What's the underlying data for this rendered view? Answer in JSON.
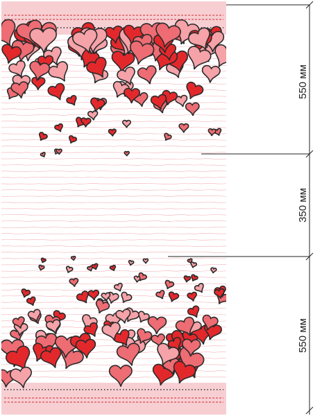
{
  "fabric": {
    "background": "#ffffff",
    "border_band_color": "#f7cfd3",
    "stripe_color": "#f2a6ad",
    "dash_color": "#d32a2e",
    "heart_colors": [
      "#e3282c",
      "#f5a2a8",
      "#ee6c73"
    ],
    "outline_color": "#2a2a2a"
  },
  "dimensions": {
    "line_color": "#222222",
    "segments": [
      {
        "label": "550 мм",
        "value": 550,
        "unit": "мм"
      },
      {
        "label": "350 мм",
        "value": 350,
        "unit": "мм"
      },
      {
        "label": "550 мм",
        "value": 550,
        "unit": "мм"
      }
    ]
  }
}
